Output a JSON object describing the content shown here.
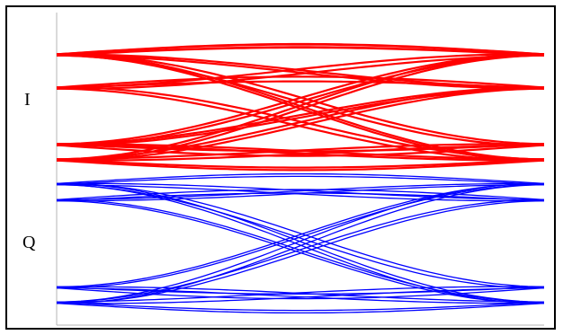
{
  "chart_data": {
    "type": "line",
    "description_kind": "eye diagram",
    "panels": [
      {
        "name": "I",
        "label": "I",
        "color": "#ff0000"
      },
      {
        "name": "Q",
        "label": "Q",
        "color": "#0000ff"
      }
    ],
    "x_range": [
      0,
      1
    ],
    "levels": [
      -3,
      -1,
      1,
      3
    ],
    "grid": false,
    "legend": "none",
    "title": "",
    "xlabel": "",
    "ylabel": ""
  }
}
